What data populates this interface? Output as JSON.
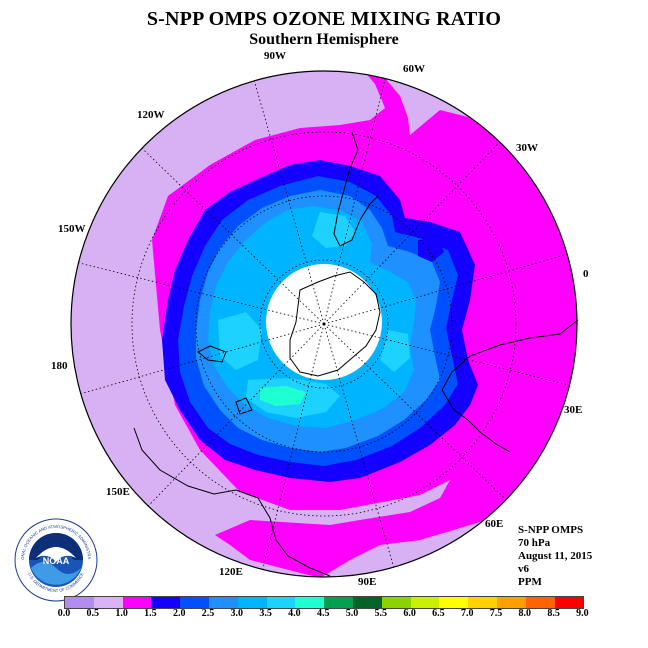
{
  "title": "S-NPP OMPS OZONE MIXING RATIO",
  "subtitle": "Southern Hemisphere",
  "longitude_labels": [
    "90W",
    "60W",
    "30W",
    "0",
    "30E",
    "60E",
    "90E",
    "120E",
    "150E",
    "180",
    "150W",
    "120W"
  ],
  "info": {
    "instrument": "S-NPP OMPS",
    "level": "70 hPa",
    "date": "August 11, 2015",
    "version": "v6",
    "units": "PPM"
  },
  "logo": {
    "text": "NOAA",
    "ring_text": "NATIONAL OCEANIC AND ATMOSPHERIC ADMINISTRATION",
    "ring_text_bottom": "U.S. DEPARTMENT OF COMMERCE"
  },
  "colorbar": {
    "ticks": [
      "0.0",
      "0.5",
      "1.0",
      "1.5",
      "2.0",
      "2.5",
      "3.0",
      "3.5",
      "4.0",
      "4.5",
      "5.0",
      "5.5",
      "6.0",
      "6.5",
      "7.0",
      "7.5",
      "8.0",
      "8.5",
      "9.0"
    ],
    "colors": [
      "#b38cf0",
      "#d9b3f5",
      "#ff00ff",
      "#1400ff",
      "#0050ff",
      "#1e90ff",
      "#00b4ff",
      "#1ed2ff",
      "#1effd2",
      "#00a050",
      "#006428",
      "#8cd200",
      "#c8f000",
      "#ffff00",
      "#ffd200",
      "#ffa000",
      "#ff6400",
      "#ff0000",
      "#8b5a3c"
    ]
  },
  "map": {
    "hemisphere": "Southern",
    "projection": "polar stereographic",
    "colors": {
      "lavender": "#d8b1f4",
      "magenta": "#ff00ff",
      "blue": "#1400ff",
      "mid_blue": "#0050ff",
      "light_blue": "#1e90ff",
      "sky": "#00b4ff",
      "cyan": "#1ed2ff",
      "aqua": "#1effd2",
      "no_data": "#ffffff"
    }
  }
}
